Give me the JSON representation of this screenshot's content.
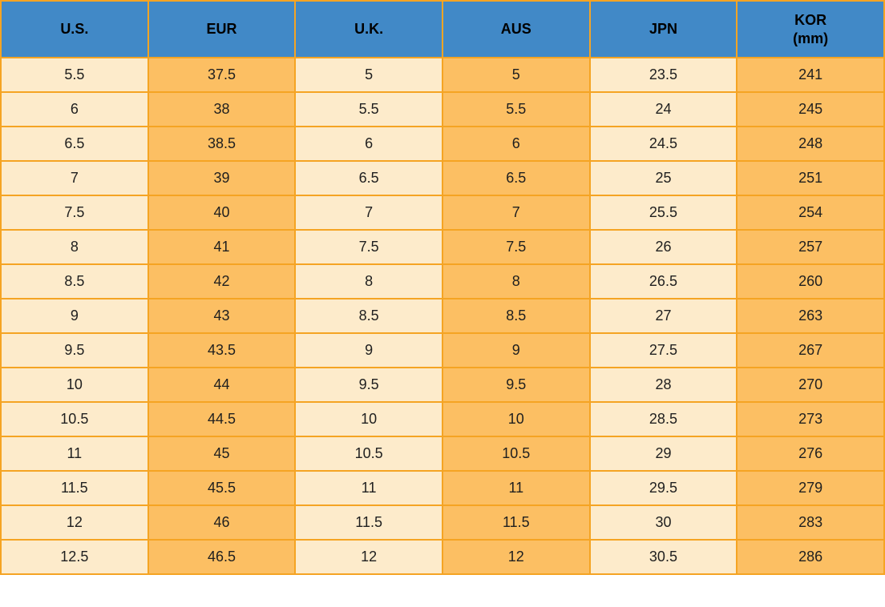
{
  "colors": {
    "header_bg": "#4189C7",
    "row_light": "#FDEBCB",
    "row_orange": "#FCBF63",
    "border": "#F5A423",
    "header_text": "#000000",
    "cell_text": "#1F1F1F"
  },
  "table": {
    "columns": [
      {
        "id": "us",
        "label": "U.S."
      },
      {
        "id": "eur",
        "label": "EUR"
      },
      {
        "id": "uk",
        "label": "U.K."
      },
      {
        "id": "aus",
        "label": "AUS"
      },
      {
        "id": "jpn",
        "label": "JPN"
      },
      {
        "id": "kor",
        "label": "KOR",
        "sublabel": "(mm)"
      }
    ],
    "rows": [
      [
        "5.5",
        "37.5",
        "5",
        "5",
        "23.5",
        "241"
      ],
      [
        "6",
        "38",
        "5.5",
        "5.5",
        "24",
        "245"
      ],
      [
        "6.5",
        "38.5",
        "6",
        "6",
        "24.5",
        "248"
      ],
      [
        "7",
        "39",
        "6.5",
        "6.5",
        "25",
        "251"
      ],
      [
        "7.5",
        "40",
        "7",
        "7",
        "25.5",
        "254"
      ],
      [
        "8",
        "41",
        "7.5",
        "7.5",
        "26",
        "257"
      ],
      [
        "8.5",
        "42",
        "8",
        "8",
        "26.5",
        "260"
      ],
      [
        "9",
        "43",
        "8.5",
        "8.5",
        "27",
        "263"
      ],
      [
        "9.5",
        "43.5",
        "9",
        "9",
        "27.5",
        "267"
      ],
      [
        "10",
        "44",
        "9.5",
        "9.5",
        "28",
        "270"
      ],
      [
        "10.5",
        "44.5",
        "10",
        "10",
        "28.5",
        "273"
      ],
      [
        "11",
        "45",
        "10.5",
        "10.5",
        "29",
        "276"
      ],
      [
        "11.5",
        "45.5",
        "11",
        "11",
        "29.5",
        "279"
      ],
      [
        "12",
        "46",
        "11.5",
        "11.5",
        "30",
        "283"
      ],
      [
        "12.5",
        "46.5",
        "12",
        "12",
        "30.5",
        "286"
      ]
    ]
  },
  "chart_data": {
    "type": "table",
    "columns": [
      "U.S.",
      "EUR",
      "U.K.",
      "AUS",
      "JPN",
      "KOR (mm)"
    ],
    "rows": [
      [
        5.5,
        37.5,
        5,
        5,
        23.5,
        241
      ],
      [
        6,
        38,
        5.5,
        5.5,
        24,
        245
      ],
      [
        6.5,
        38.5,
        6,
        6,
        24.5,
        248
      ],
      [
        7,
        39,
        6.5,
        6.5,
        25,
        251
      ],
      [
        7.5,
        40,
        7,
        7,
        25.5,
        254
      ],
      [
        8,
        41,
        7.5,
        7.5,
        26,
        257
      ],
      [
        8.5,
        42,
        8,
        8,
        26.5,
        260
      ],
      [
        9,
        43,
        8.5,
        8.5,
        27,
        263
      ],
      [
        9.5,
        43.5,
        9,
        9,
        27.5,
        267
      ],
      [
        10,
        44,
        9.5,
        9.5,
        28,
        270
      ],
      [
        10.5,
        44.5,
        10,
        10,
        28.5,
        273
      ],
      [
        11,
        45,
        10.5,
        10.5,
        29,
        276
      ],
      [
        11.5,
        45.5,
        11,
        11,
        29.5,
        279
      ],
      [
        12,
        46,
        11.5,
        11.5,
        30,
        283
      ],
      [
        12.5,
        46.5,
        12,
        12,
        30.5,
        286
      ]
    ]
  }
}
